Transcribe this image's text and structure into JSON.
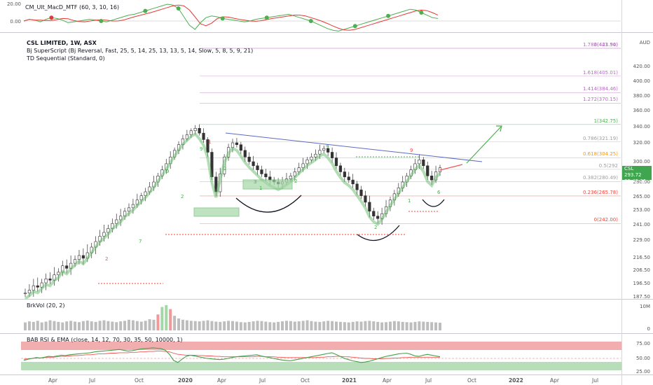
{
  "chart_data": {
    "type": "candlestick",
    "title": "CSL LIMITED, 1W, ASX",
    "indicators": [
      "CM_Ult_MacD_MTF (60, 3, 10, 16)",
      "Bj SuperScript (Bj Reversal, Fast, 25, 5, 14, 25, 13, 13, 5, 14, Slow, 5, 8, 5, 9, 21)",
      "TD Sequential (Standard, 0)",
      "BrkVol (20, 2)",
      "BAB RSI & EMA (close, 14, 12, 70, 30, 35, 50, 10000, 1)"
    ],
    "currency": "AUD",
    "y_ticks": [
      "420.00",
      "400.00",
      "380.00",
      "360.00",
      "340.00",
      "320.00",
      "300.00",
      "280.00",
      "265.00",
      "253.00",
      "241.00",
      "229.00",
      "216.50",
      "206.50",
      "196.50",
      "187.50"
    ],
    "macd_ticks": [
      "20.00",
      "0.00"
    ],
    "volume_ticks": [
      "10M",
      "0"
    ],
    "rsi_ticks": [
      "75.00",
      "50.00",
      "25.00"
    ],
    "x_ticks": [
      "Apr",
      "Jul",
      "Oct",
      "2020",
      "Apr",
      "Jul",
      "Oct",
      "2021",
      "Apr",
      "Jul",
      "Oct",
      "2022",
      "Apr",
      "Jul"
    ],
    "fib_levels": [
      {
        "label": "2(443.50)",
        "value": 443.5
      },
      {
        "label": "1.786(421.94)",
        "value": 421.94
      },
      {
        "label": "1.618(405.01)",
        "value": 405.01
      },
      {
        "label": "1.414(384.46)",
        "value": 384.46
      },
      {
        "label": "1.272(370.15)",
        "value": 370.15
      },
      {
        "label": "1(342.75)",
        "value": 342.75
      },
      {
        "label": "0.786(321.19)",
        "value": 321.19
      },
      {
        "label": "0.618(304.25)",
        "value": 304.25
      },
      {
        "label": "0.5(292",
        "value": 292.5
      },
      {
        "label": "0.382(280.49)",
        "value": 280.49
      },
      {
        "label": "0.236(265.78)",
        "value": 265.78
      },
      {
        "label": "0(242.00)",
        "value": 242.0
      }
    ],
    "last_price": {
      "ticker": "CSL",
      "value": "293.72",
      "countdown": "03:42:25"
    },
    "series": [
      {
        "values": [
          190,
          192,
          195,
          194,
          197,
          200,
          199,
          203,
          205,
          210,
          208,
          212,
          215,
          218,
          216,
          220,
          224,
          228,
          232,
          235,
          238,
          242,
          245,
          248,
          252,
          255,
          258,
          262,
          266,
          270,
          275,
          280,
          286,
          292,
          298,
          305,
          312,
          318,
          325,
          330,
          335,
          338,
          332,
          324,
          310,
          285,
          270,
          288,
          305,
          315,
          320,
          318,
          312,
          305,
          300,
          296,
          292,
          288,
          285,
          282,
          280,
          278,
          280,
          283,
          286,
          290,
          294,
          298,
          302,
          305,
          308,
          312,
          314,
          310,
          304,
          296,
          290,
          285,
          282,
          278,
          272,
          266,
          260,
          252,
          248,
          246,
          250,
          256,
          262,
          268,
          274,
          280,
          286,
          292,
          298,
          302,
          296,
          286,
          282,
          290,
          294
        ]
      }
    ],
    "td_counts": [
      "9",
      "2",
      "9",
      "1",
      "2",
      "3",
      "7",
      "2",
      "1",
      "2",
      "9",
      "9",
      "1",
      "6",
      "2"
    ],
    "volume": [
      30,
      34,
      32,
      36,
      30,
      33,
      38,
      35,
      32,
      30,
      34,
      36,
      33,
      31,
      35,
      37,
      34,
      32,
      36,
      38,
      35,
      33,
      31,
      34,
      36,
      40,
      38,
      35,
      33,
      36,
      42,
      40,
      60,
      88,
      95,
      80,
      55,
      45,
      40,
      38,
      36,
      35,
      34,
      36,
      38,
      35,
      33,
      32,
      34,
      36,
      35,
      33,
      31,
      30,
      32,
      34,
      36,
      35,
      33,
      31,
      30,
      32,
      34,
      36,
      35,
      33,
      34,
      36,
      38,
      35,
      33,
      32,
      34,
      36,
      35,
      33,
      32,
      31,
      30,
      32,
      34,
      33,
      35,
      36,
      34,
      32,
      30,
      31,
      33,
      35,
      34,
      32,
      31,
      30,
      32,
      34,
      33,
      32,
      31,
      30,
      29
    ],
    "rsi": [
      45,
      48,
      50,
      52,
      51,
      53,
      55,
      54,
      56,
      58,
      57,
      59,
      60,
      61,
      62,
      63,
      64,
      66,
      67,
      68,
      69,
      70,
      71,
      72,
      70,
      68,
      69,
      71,
      73,
      74,
      75,
      76,
      75,
      74,
      70,
      60,
      45,
      40,
      48,
      55,
      58,
      56,
      54,
      52,
      50,
      49,
      48,
      47,
      48,
      50,
      52,
      54,
      55,
      56,
      57,
      58,
      59,
      56,
      54,
      52,
      50,
      48,
      46,
      45,
      44,
      46,
      48,
      50,
      52,
      54,
      56,
      58,
      60,
      62,
      64,
      60,
      55,
      50,
      47,
      44,
      42,
      40,
      41,
      43,
      46,
      49,
      52,
      55,
      57,
      59,
      61,
      62,
      63,
      60,
      56,
      55,
      58,
      60,
      58,
      56,
      54
    ],
    "ema": [
      48,
      49,
      50,
      51,
      51,
      52,
      53,
      53,
      54,
      55,
      55,
      56,
      57,
      57,
      58,
      59,
      59,
      60,
      61,
      61,
      62,
      63,
      63,
      64,
      64,
      64,
      65,
      65,
      66,
      66,
      67,
      67,
      68,
      68,
      67,
      66,
      63,
      60,
      59,
      58,
      58,
      58,
      57,
      57,
      56,
      56,
      55,
      55,
      54,
      54,
      54,
      54,
      54,
      54,
      54,
      54,
      55,
      55,
      54,
      54,
      54,
      53,
      53,
      52,
      52,
      52,
      52,
      52,
      52,
      52,
      52,
      53,
      53,
      54,
      54,
      55,
      55,
      54,
      54,
      53,
      52,
      51,
      50,
      50,
      49,
      49,
      49,
      50,
      50,
      51,
      51,
      52,
      52,
      53,
      53,
      53,
      53,
      53,
      53,
      53,
      53
    ],
    "macd": [
      0,
      2,
      1,
      -1,
      2,
      4,
      3,
      1,
      -2,
      -1,
      0,
      1,
      2,
      1,
      0,
      -1,
      1,
      3,
      5,
      7,
      8,
      10,
      12,
      14,
      16,
      18,
      20,
      19,
      15,
      5,
      -5,
      -10,
      -2,
      4,
      6,
      5,
      3,
      2,
      1,
      0,
      -1,
      0,
      2,
      3,
      4,
      5,
      6,
      7,
      8,
      6,
      4,
      2,
      0,
      -3,
      -6,
      -9,
      -11,
      -12,
      -10,
      -8,
      -6,
      -4,
      -2,
      0,
      2,
      4,
      6,
      8,
      10,
      12,
      14,
      13,
      10,
      7,
      4,
      3
    ]
  }
}
